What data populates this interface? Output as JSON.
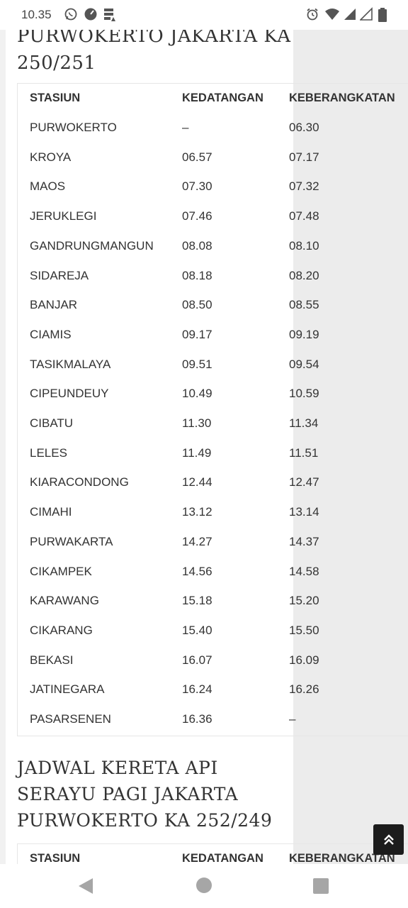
{
  "status_bar": {
    "time": "10.35",
    "icons": [
      "whatsapp-icon",
      "speedometer-icon",
      "storage-icon",
      "alarm-icon",
      "wifi-icon",
      "signal-icon",
      "signal-icon",
      "battery-icon"
    ]
  },
  "article": {
    "section1_title_line1": "PURWOKERTO JAKARTA KA",
    "section1_title_line2": "250/251",
    "section2_title_line1": "JADWAL KERETA API",
    "section2_title_line2": "SERAYU PAGI JAKARTA",
    "section2_title_line3": "PURWOKERTO KA 252/249"
  },
  "table1": {
    "headers": [
      "STASIUN",
      "KEDATANGAN",
      "KEBERANGKATAN"
    ],
    "rows": [
      [
        "PURWOKERTO",
        "–",
        "06.30"
      ],
      [
        "KROYA",
        "06.57",
        "07.17"
      ],
      [
        "MAOS",
        "07.30",
        "07.32"
      ],
      [
        "JERUKLEGI",
        "07.46",
        "07.48"
      ],
      [
        "GANDRUNGMANGUN",
        "08.08",
        "08.10"
      ],
      [
        "SIDAREJA",
        "08.18",
        "08.20"
      ],
      [
        "BANJAR",
        "08.50",
        "08.55"
      ],
      [
        "CIAMIS",
        "09.17",
        "09.19"
      ],
      [
        "TASIKMALAYA",
        "09.51",
        "09.54"
      ],
      [
        "CIPEUNDEUY",
        "10.49",
        "10.59"
      ],
      [
        "CIBATU",
        "11.30",
        "11.34"
      ],
      [
        "LELES",
        "11.49",
        "11.51"
      ],
      [
        "KIARACONDONG",
        "12.44",
        "12.47"
      ],
      [
        "CIMAHI",
        "13.12",
        "13.14"
      ],
      [
        "PURWAKARTA",
        "14.27",
        "14.37"
      ],
      [
        "CIKAMPEK",
        "14.56",
        "14.58"
      ],
      [
        "KARAWANG",
        "15.18",
        "15.20"
      ],
      [
        "CIKARANG",
        "15.40",
        "15.50"
      ],
      [
        "BEKASI",
        "16.07",
        "16.09"
      ],
      [
        "JATINEGARA",
        "16.24",
        "16.26"
      ],
      [
        "PASARSENEN",
        "16.36",
        "–"
      ]
    ]
  },
  "table2": {
    "headers": [
      "STASIUN",
      "KEDATANGAN",
      "KEBERANGKATAN"
    ]
  },
  "controls": {
    "scroll_top_icon": "double-chevron-up-icon"
  },
  "nav_bar": {
    "icons": [
      "back-icon",
      "home-icon",
      "recents-icon"
    ]
  },
  "colors": {
    "text": "#333333",
    "panel_gray": "#ececec",
    "scroll_button": "#1c1c1c",
    "nav_icon": "#a6a6a6"
  }
}
